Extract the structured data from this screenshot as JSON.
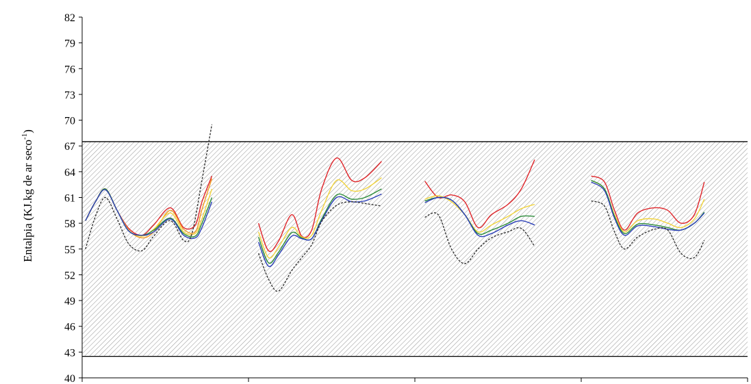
{
  "chart_data": {
    "type": "line",
    "title": "",
    "xlabel": "",
    "ylabel": "Entalpia (KJ.kg de ar seco",
    "ylabel_sup": "-1",
    "ylabel_close": ")",
    "ylim": [
      40,
      82
    ],
    "yticks": [
      "40",
      "43",
      "46",
      "49",
      "52",
      "55",
      "58",
      "61",
      "64",
      "67",
      "70",
      "73",
      "76",
      "79",
      "82"
    ],
    "xlim": [
      0,
      4
    ],
    "x_category_boundaries": [
      0,
      1,
      2,
      3,
      4
    ],
    "comfort_band": {
      "lower": 42.5,
      "upper": 67.5,
      "pattern": "diagonal-hatch"
    },
    "grid": false,
    "legend": "none",
    "series": [
      {
        "color": "#e0252a",
        "dash": "solid",
        "segments": [
          [
            [
              0.02,
              58.3
            ],
            [
              0.08,
              60.5
            ],
            [
              0.14,
              62.0
            ],
            [
              0.21,
              59.5
            ],
            [
              0.28,
              57.4
            ],
            [
              0.36,
              56.6
            ],
            [
              0.43,
              57.8
            ],
            [
              0.53,
              59.8
            ],
            [
              0.61,
              57.5
            ],
            [
              0.68,
              57.8
            ],
            [
              0.72,
              60.5
            ],
            [
              0.78,
              63.5
            ]
          ],
          [
            [
              1.06,
              58.0
            ],
            [
              1.12,
              54.8
            ],
            [
              1.18,
              55.9
            ],
            [
              1.26,
              59.0
            ],
            [
              1.32,
              56.5
            ],
            [
              1.38,
              57.2
            ],
            [
              1.44,
              62.0
            ],
            [
              1.53,
              65.6
            ],
            [
              1.62,
              63.0
            ],
            [
              1.7,
              63.3
            ],
            [
              1.8,
              65.2
            ]
          ],
          [
            [
              2.06,
              62.9
            ],
            [
              2.14,
              61.0
            ],
            [
              2.22,
              61.3
            ],
            [
              2.3,
              60.5
            ],
            [
              2.38,
              57.5
            ],
            [
              2.46,
              59.0
            ],
            [
              2.56,
              60.2
            ],
            [
              2.64,
              62.0
            ],
            [
              2.72,
              65.4
            ]
          ],
          [
            [
              3.06,
              63.5
            ],
            [
              3.14,
              62.8
            ],
            [
              3.2,
              59.5
            ],
            [
              3.26,
              57.2
            ],
            [
              3.34,
              59.2
            ],
            [
              3.44,
              59.8
            ],
            [
              3.52,
              59.5
            ],
            [
              3.6,
              58.0
            ],
            [
              3.68,
              59.0
            ],
            [
              3.74,
              62.8
            ]
          ]
        ]
      },
      {
        "color": "#f29a1f",
        "dash": "solid",
        "segments": [
          [
            [
              0.02,
              58.3
            ],
            [
              0.08,
              60.5
            ],
            [
              0.14,
              62.0
            ],
            [
              0.21,
              59.5
            ],
            [
              0.28,
              57.2
            ],
            [
              0.36,
              56.3
            ],
            [
              0.43,
              57.0
            ],
            [
              0.53,
              59.5
            ],
            [
              0.61,
              57.3
            ],
            [
              0.68,
              57.0
            ],
            [
              0.72,
              59.6
            ],
            [
              0.78,
              63.2
            ]
          ]
        ]
      },
      {
        "color": "#f2d43c",
        "dash": "solid",
        "segments": [
          [
            [
              0.02,
              58.3
            ],
            [
              0.08,
              60.5
            ],
            [
              0.14,
              61.9
            ],
            [
              0.21,
              59.5
            ],
            [
              0.28,
              57.2
            ],
            [
              0.36,
              56.5
            ],
            [
              0.43,
              57.3
            ],
            [
              0.53,
              59.2
            ],
            [
              0.61,
              57.0
            ],
            [
              0.68,
              56.8
            ],
            [
              0.72,
              58.5
            ],
            [
              0.78,
              62.0
            ]
          ],
          [
            [
              1.06,
              57.0
            ],
            [
              1.12,
              54.0
            ],
            [
              1.18,
              55.2
            ],
            [
              1.26,
              57.5
            ],
            [
              1.32,
              56.4
            ],
            [
              1.38,
              56.6
            ],
            [
              1.44,
              59.5
            ],
            [
              1.53,
              63.0
            ],
            [
              1.62,
              61.8
            ],
            [
              1.7,
              62.0
            ],
            [
              1.8,
              63.3
            ]
          ],
          [
            [
              2.06,
              60.8
            ],
            [
              2.14,
              61.2
            ],
            [
              2.22,
              60.5
            ],
            [
              2.3,
              59.0
            ],
            [
              2.38,
              57.0
            ],
            [
              2.46,
              57.8
            ],
            [
              2.56,
              58.8
            ],
            [
              2.64,
              59.7
            ],
            [
              2.72,
              60.2
            ]
          ],
          [
            [
              3.06,
              63.0
            ],
            [
              3.14,
              62.0
            ],
            [
              3.2,
              59.0
            ],
            [
              3.26,
              57.0
            ],
            [
              3.34,
              58.3
            ],
            [
              3.44,
              58.5
            ],
            [
              3.52,
              58.0
            ],
            [
              3.6,
              57.5
            ],
            [
              3.68,
              58.5
            ],
            [
              3.74,
              60.8
            ]
          ]
        ]
      },
      {
        "color": "#2c8c3a",
        "dash": "solid",
        "segments": [
          [
            [
              0.02,
              58.3
            ],
            [
              0.08,
              60.5
            ],
            [
              0.14,
              62.0
            ],
            [
              0.21,
              59.5
            ],
            [
              0.28,
              57.1
            ],
            [
              0.36,
              56.6
            ],
            [
              0.43,
              57.2
            ],
            [
              0.53,
              58.6
            ],
            [
              0.61,
              56.8
            ],
            [
              0.68,
              56.5
            ],
            [
              0.72,
              58.0
            ],
            [
              0.78,
              61.0
            ]
          ],
          [
            [
              1.06,
              56.4
            ],
            [
              1.12,
              53.4
            ],
            [
              1.18,
              54.6
            ],
            [
              1.26,
              56.9
            ],
            [
              1.32,
              56.3
            ],
            [
              1.38,
              56.2
            ],
            [
              1.44,
              58.5
            ],
            [
              1.53,
              61.3
            ],
            [
              1.62,
              60.8
            ],
            [
              1.7,
              61.0
            ],
            [
              1.8,
              62.0
            ]
          ],
          [
            [
              2.06,
              60.6
            ],
            [
              2.14,
              61.0
            ],
            [
              2.22,
              60.7
            ],
            [
              2.3,
              59.0
            ],
            [
              2.38,
              56.8
            ],
            [
              2.46,
              57.2
            ],
            [
              2.56,
              58.0
            ],
            [
              2.64,
              58.8
            ],
            [
              2.72,
              58.8
            ]
          ],
          [
            [
              3.06,
              63.0
            ],
            [
              3.14,
              62.0
            ],
            [
              3.2,
              58.8
            ],
            [
              3.26,
              56.8
            ],
            [
              3.34,
              57.9
            ],
            [
              3.44,
              57.8
            ],
            [
              3.52,
              57.5
            ],
            [
              3.6,
              57.2
            ],
            [
              3.68,
              58.0
            ],
            [
              3.74,
              59.3
            ]
          ]
        ]
      },
      {
        "color": "#2b3fb8",
        "dash": "solid",
        "segments": [
          [
            [
              0.02,
              58.3
            ],
            [
              0.08,
              60.5
            ],
            [
              0.14,
              61.9
            ],
            [
              0.21,
              59.5
            ],
            [
              0.28,
              57.1
            ],
            [
              0.36,
              56.6
            ],
            [
              0.43,
              57.0
            ],
            [
              0.53,
              58.5
            ],
            [
              0.61,
              56.6
            ],
            [
              0.68,
              56.3
            ],
            [
              0.72,
              57.5
            ],
            [
              0.78,
              60.5
            ]
          ],
          [
            [
              1.06,
              55.8
            ],
            [
              1.12,
              53.0
            ],
            [
              1.18,
              54.3
            ],
            [
              1.26,
              56.5
            ],
            [
              1.32,
              56.2
            ],
            [
              1.38,
              56.2
            ],
            [
              1.44,
              58.3
            ],
            [
              1.53,
              61.0
            ],
            [
              1.62,
              60.5
            ],
            [
              1.7,
              60.6
            ],
            [
              1.8,
              61.4
            ]
          ],
          [
            [
              2.06,
              60.4
            ],
            [
              2.14,
              61.0
            ],
            [
              2.22,
              60.7
            ],
            [
              2.3,
              59.0
            ],
            [
              2.38,
              56.6
            ],
            [
              2.46,
              56.8
            ],
            [
              2.56,
              57.8
            ],
            [
              2.64,
              58.3
            ],
            [
              2.72,
              57.8
            ]
          ],
          [
            [
              3.06,
              62.8
            ],
            [
              3.14,
              61.8
            ],
            [
              3.2,
              58.6
            ],
            [
              3.26,
              56.6
            ],
            [
              3.34,
              57.7
            ],
            [
              3.44,
              57.6
            ],
            [
              3.52,
              57.3
            ],
            [
              3.6,
              57.2
            ],
            [
              3.68,
              58.0
            ],
            [
              3.74,
              59.2
            ]
          ]
        ]
      },
      {
        "color": "#333333",
        "dash": "dashed",
        "segments": [
          [
            [
              0.02,
              55.0
            ],
            [
              0.08,
              58.8
            ],
            [
              0.14,
              61.0
            ],
            [
              0.21,
              58.5
            ],
            [
              0.28,
              55.6
            ],
            [
              0.36,
              54.8
            ],
            [
              0.43,
              56.5
            ],
            [
              0.53,
              58.3
            ],
            [
              0.61,
              56.0
            ],
            [
              0.66,
              56.8
            ],
            [
              0.72,
              63.0
            ],
            [
              0.78,
              69.5
            ]
          ],
          [
            [
              1.06,
              54.5
            ],
            [
              1.12,
              51.5
            ],
            [
              1.18,
              50.1
            ],
            [
              1.26,
              52.5
            ],
            [
              1.32,
              54.0
            ],
            [
              1.38,
              55.5
            ],
            [
              1.44,
              58.2
            ],
            [
              1.53,
              60.1
            ],
            [
              1.62,
              60.5
            ],
            [
              1.7,
              60.3
            ],
            [
              1.8,
              60.0
            ]
          ],
          [
            [
              2.06,
              58.7
            ],
            [
              2.14,
              59.0
            ],
            [
              2.22,
              55.0
            ],
            [
              2.3,
              53.3
            ],
            [
              2.38,
              55.0
            ],
            [
              2.46,
              56.3
            ],
            [
              2.56,
              57.0
            ],
            [
              2.64,
              57.4
            ],
            [
              2.72,
              55.3
            ]
          ],
          [
            [
              3.06,
              60.6
            ],
            [
              3.14,
              60.0
            ],
            [
              3.2,
              57.0
            ],
            [
              3.26,
              55.0
            ],
            [
              3.34,
              56.4
            ],
            [
              3.44,
              57.3
            ],
            [
              3.52,
              57.2
            ],
            [
              3.6,
              54.5
            ],
            [
              3.68,
              54.0
            ],
            [
              3.74,
              56.0
            ]
          ]
        ]
      }
    ]
  }
}
